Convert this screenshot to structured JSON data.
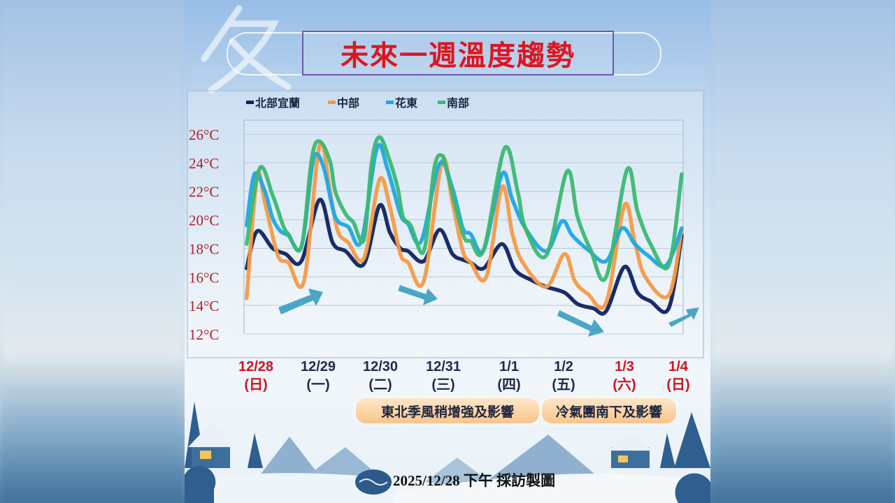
{
  "title": "未來一週溫度趨勢",
  "decorative_char": "冬",
  "notes": [
    "東北季風稍增強及影響",
    "冷氣團南下及影響"
  ],
  "footer": "2025/12/28 下午 採訪製圖",
  "chart_data": {
    "type": "line",
    "title": "未來一週溫度趨勢",
    "categories": [
      "12/28",
      "12/29",
      "12/30",
      "12/31",
      "1/1",
      "1/2",
      "1/3",
      "1/4"
    ],
    "weekdays": [
      "(日)",
      "(一)",
      "(二)",
      "(三)",
      "(四)",
      "(五)",
      "(六)",
      "(日)"
    ],
    "holiday_color": "#d0141e",
    "weekday_color": "#1e2a4a",
    "holidays": [
      0,
      6,
      7
    ],
    "y_ticks": [
      "12°C",
      "14°C",
      "16°C",
      "18°C",
      "20°C",
      "22°C",
      "24°C",
      "26°C"
    ],
    "ylim": [
      12,
      26
    ],
    "grid": true,
    "legend_position": "top-left",
    "series": [
      {
        "name": "北部宜蘭",
        "color": "#0f2160",
        "points": [
          [
            "12/28 01:00",
            16.6
          ],
          [
            "12/28 05:00",
            19.2
          ],
          [
            "12/28 11:00",
            18.0
          ],
          [
            "12/28 16:00",
            17.6
          ],
          [
            "12/28 22:00",
            17.1
          ],
          [
            "12/29 05:00",
            21.4
          ],
          [
            "12/29 10:00",
            18.4
          ],
          [
            "12/29 15:00",
            17.8
          ],
          [
            "12/29 22:00",
            16.9
          ],
          [
            "12/30 04:00",
            21.0
          ],
          [
            "12/30 08:00",
            19.1
          ],
          [
            "12/30 12:00",
            18.0
          ],
          [
            "12/30 15:00",
            17.8
          ],
          [
            "12/30 21:00",
            17.1
          ],
          [
            "12/31 03:00",
            19.3
          ],
          [
            "12/31 08:00",
            17.6
          ],
          [
            "12/31 12:00",
            17.2
          ],
          [
            "12/31 15:00",
            17.0
          ],
          [
            "12/31 20:00",
            16.6
          ],
          [
            "1/1 03:00",
            18.3
          ],
          [
            "1/1 08:00",
            16.5
          ],
          [
            "1/1 14:00",
            15.8
          ],
          [
            "1/1 20:00",
            15.3
          ],
          [
            "1/2 03:00",
            14.9
          ],
          [
            "1/2 08:00",
            14.1
          ],
          [
            "1/2 14:00",
            13.8
          ],
          [
            "1/2 19:00",
            13.6
          ],
          [
            "1/3 02:00",
            16.7
          ],
          [
            "1/3 07:00",
            14.9
          ],
          [
            "1/3 12:00",
            14.3
          ],
          [
            "1/3 19:00",
            13.8
          ],
          [
            "1/4 00:00",
            18.9
          ]
        ]
      },
      {
        "name": "中部",
        "color": "#f59a45",
        "points": [
          [
            "12/28 01:00",
            14.5
          ],
          [
            "12/28 05:00",
            23.0
          ],
          [
            "12/28 08:00",
            21.2
          ],
          [
            "12/28 13:00",
            17.5
          ],
          [
            "12/28 17:00",
            17.0
          ],
          [
            "12/28 23:00",
            15.7
          ],
          [
            "12/29 05:00",
            25.2
          ],
          [
            "12/29 09:00",
            22.0
          ],
          [
            "12/29 12:00",
            19.2
          ],
          [
            "12/29 16:00",
            18.4
          ],
          [
            "12/29 22:00",
            17.3
          ],
          [
            "12/30 04:00",
            22.8
          ],
          [
            "12/30 08:00",
            20.9
          ],
          [
            "12/30 12:00",
            17.6
          ],
          [
            "12/30 15:00",
            17.0
          ],
          [
            "12/30 21:00",
            15.7
          ],
          [
            "12/31 04:00",
            24.1
          ],
          [
            "12/31 08:00",
            21.2
          ],
          [
            "12/31 12:00",
            17.8
          ],
          [
            "12/31 15:00",
            17.0
          ],
          [
            "12/31 21:00",
            16.0
          ],
          [
            "1/1 03:00",
            22.3
          ],
          [
            "1/1 07:00",
            19.0
          ],
          [
            "1/1 11:00",
            17.0
          ],
          [
            "1/1 20:00",
            15.3
          ],
          [
            "1/2 03:00",
            17.6
          ],
          [
            "1/2 07:00",
            15.7
          ],
          [
            "1/2 12:00",
            14.8
          ],
          [
            "1/2 19:00",
            14.2
          ],
          [
            "1/3 02:00",
            21.0
          ],
          [
            "1/3 06:00",
            18.4
          ],
          [
            "1/3 10:00",
            16.0
          ],
          [
            "1/3 19:00",
            14.7
          ],
          [
            "1/4 00:00",
            19.4
          ]
        ]
      },
      {
        "name": "花東",
        "color": "#1ea7e6",
        "points": [
          [
            "12/28 01:00",
            19.6
          ],
          [
            "12/28 04:00",
            23.2
          ],
          [
            "12/28 08:00",
            22.0
          ],
          [
            "12/28 11:00",
            20.1
          ],
          [
            "12/28 14:00",
            19.2
          ],
          [
            "12/28 17:00",
            18.9
          ],
          [
            "12/28 22:00",
            18.1
          ],
          [
            "12/29 02:00",
            23.6
          ],
          [
            "12/29 04:00",
            24.6
          ],
          [
            "12/29 07:00",
            23.4
          ],
          [
            "12/29 11:00",
            20.2
          ],
          [
            "12/29 16:00",
            19.5
          ],
          [
            "12/29 21:00",
            18.5
          ],
          [
            "12/30 03:00",
            25.0
          ],
          [
            "12/30 07:00",
            23.6
          ],
          [
            "12/30 12:00",
            20.4
          ],
          [
            "12/30 15:00",
            19.7
          ],
          [
            "12/30 20:00",
            18.5
          ],
          [
            "12/31 03:00",
            23.9
          ],
          [
            "12/31 08:00",
            22.2
          ],
          [
            "12/31 12:00",
            19.4
          ],
          [
            "12/31 15:00",
            19.0
          ],
          [
            "12/31 20:00",
            17.9
          ],
          [
            "1/1 03:00",
            23.2
          ],
          [
            "1/1 07:00",
            21.4
          ],
          [
            "1/1 12:00",
            19.4
          ],
          [
            "1/1 20:00",
            17.8
          ],
          [
            "1/2 02:00",
            19.9
          ],
          [
            "1/2 06:00",
            18.9
          ],
          [
            "1/2 12:00",
            17.9
          ],
          [
            "1/2 19:00",
            17.1
          ],
          [
            "1/3 01:00",
            19.4
          ],
          [
            "1/3 06:00",
            18.3
          ],
          [
            "1/3 11:00",
            17.5
          ],
          [
            "1/3 18:00",
            16.8
          ],
          [
            "1/4 00:00",
            19.4
          ]
        ]
      },
      {
        "name": "南部",
        "color": "#3bb873",
        "points": [
          [
            "12/28 01:00",
            18.3
          ],
          [
            "12/28 06:00",
            23.6
          ],
          [
            "12/28 11:00",
            21.7
          ],
          [
            "12/28 15:00",
            19.6
          ],
          [
            "12/28 17:00",
            19.0
          ],
          [
            "12/28 22:00",
            18.1
          ],
          [
            "12/29 02:00",
            24.3
          ],
          [
            "12/29 05:00",
            25.5
          ],
          [
            "12/29 09:00",
            24.1
          ],
          [
            "12/29 11:00",
            22.0
          ],
          [
            "12/29 15:00",
            20.4
          ],
          [
            "12/29 18:00",
            19.8
          ],
          [
            "12/29 22:00",
            18.6
          ],
          [
            "12/30 01:00",
            24.0
          ],
          [
            "12/30 04:00",
            25.8
          ],
          [
            "12/30 08:00",
            24.1
          ],
          [
            "12/30 11:00",
            22.2
          ],
          [
            "12/30 13:00",
            20.2
          ],
          [
            "12/30 16:00",
            19.6
          ],
          [
            "12/30 21:00",
            17.8
          ],
          [
            "12/31 01:00",
            23.6
          ],
          [
            "12/31 04:00",
            24.5
          ],
          [
            "12/31 06:00",
            23.3
          ],
          [
            "12/31 12:00",
            19.0
          ],
          [
            "12/31 15:00",
            18.5
          ],
          [
            "12/31 20:00",
            17.9
          ],
          [
            "1/1 04:00",
            25.0
          ],
          [
            "1/1 09:00",
            22.0
          ],
          [
            "1/1 12:00",
            19.4
          ],
          [
            "1/1 20:00",
            17.5
          ],
          [
            "1/2 04:00",
            23.4
          ],
          [
            "1/2 08:00",
            20.2
          ],
          [
            "1/2 13:00",
            17.9
          ],
          [
            "1/2 19:00",
            16.0
          ],
          [
            "1/3 03:00",
            23.5
          ],
          [
            "1/3 07:00",
            20.6
          ],
          [
            "1/3 12:00",
            18.3
          ],
          [
            "1/3 19:00",
            16.8
          ],
          [
            "1/4 00:00",
            23.2
          ]
        ]
      }
    ]
  }
}
